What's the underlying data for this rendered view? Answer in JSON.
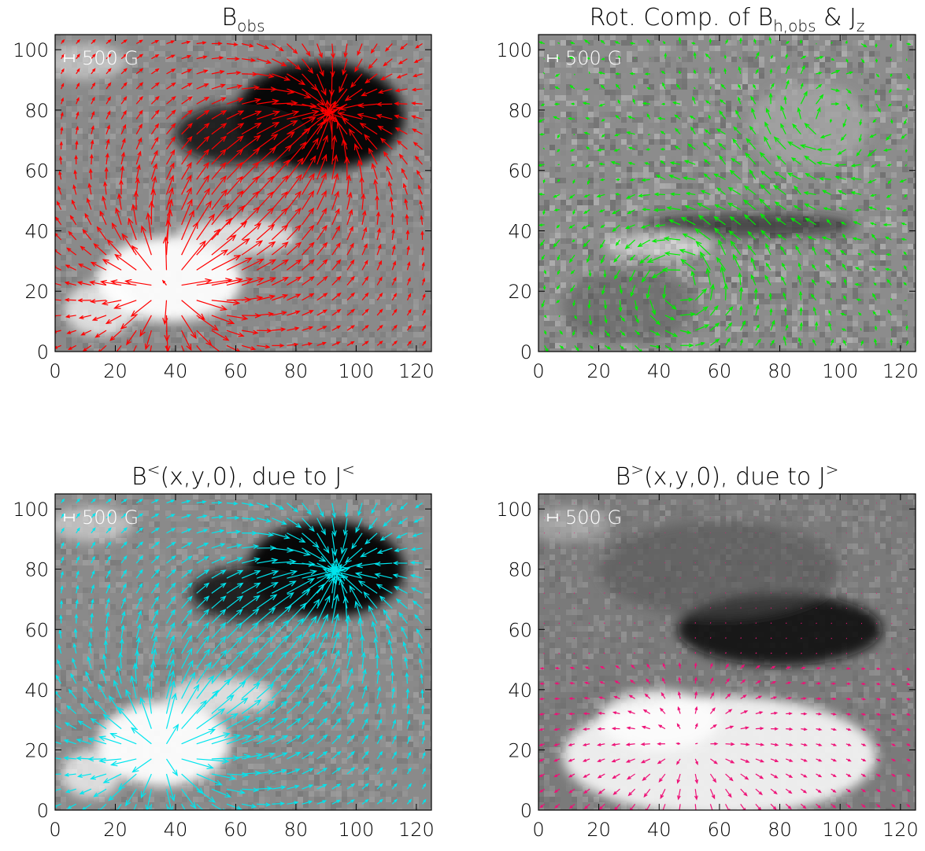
{
  "chart_data": [
    {
      "type": "vector-field",
      "title": "B",
      "title_sub": "obs",
      "title_parts": [],
      "xlim": [
        0,
        125
      ],
      "ylim": [
        0,
        105
      ],
      "x_ticks": [
        "0",
        "20",
        "40",
        "60",
        "80",
        "100",
        "120"
      ],
      "y_ticks": [
        "0",
        "20",
        "40",
        "60",
        "80",
        "100"
      ],
      "scale_label": "500 G",
      "arrow_color": "#ff0000",
      "background": "grayscale magnetogram"
    },
    {
      "type": "vector-field",
      "title": "",
      "title_sub": "",
      "title_parts": [
        "Rot. Comp. of B",
        "h,obs",
        " & J",
        "z"
      ],
      "xlim": [
        0,
        125
      ],
      "ylim": [
        0,
        105
      ],
      "x_ticks": [
        "0",
        "20",
        "40",
        "60",
        "80",
        "100",
        "120"
      ],
      "y_ticks": [
        "0",
        "20",
        "40",
        "60",
        "80",
        "100"
      ],
      "scale_label": "500 G",
      "arrow_color": "#00ee00",
      "background": "grayscale current density"
    },
    {
      "type": "vector-field",
      "title": "",
      "title_sub": "",
      "title_parts": [
        "B",
        "<",
        "(x,y,0), due to J",
        "<"
      ],
      "xlim": [
        0,
        125
      ],
      "ylim": [
        0,
        105
      ],
      "x_ticks": [
        "0",
        "20",
        "40",
        "60",
        "80",
        "100",
        "120"
      ],
      "y_ticks": [
        "0",
        "20",
        "40",
        "60",
        "80",
        "100"
      ],
      "scale_label": "500 G",
      "arrow_color": "#00e5ee",
      "background": "grayscale magnetogram"
    },
    {
      "type": "vector-field",
      "title": "",
      "title_sub": "",
      "title_parts": [
        "B",
        ">",
        "(x,y,0), due to J",
        ">"
      ],
      "xlim": [
        0,
        125
      ],
      "ylim": [
        0,
        105
      ],
      "x_ticks": [
        "0",
        "20",
        "40",
        "60",
        "80",
        "100",
        "120"
      ],
      "y_ticks": [
        "0",
        "20",
        "40",
        "60",
        "80",
        "100"
      ],
      "scale_label": "500 G",
      "arrow_color": "#ee1177",
      "background": "grayscale magnetogram"
    }
  ]
}
